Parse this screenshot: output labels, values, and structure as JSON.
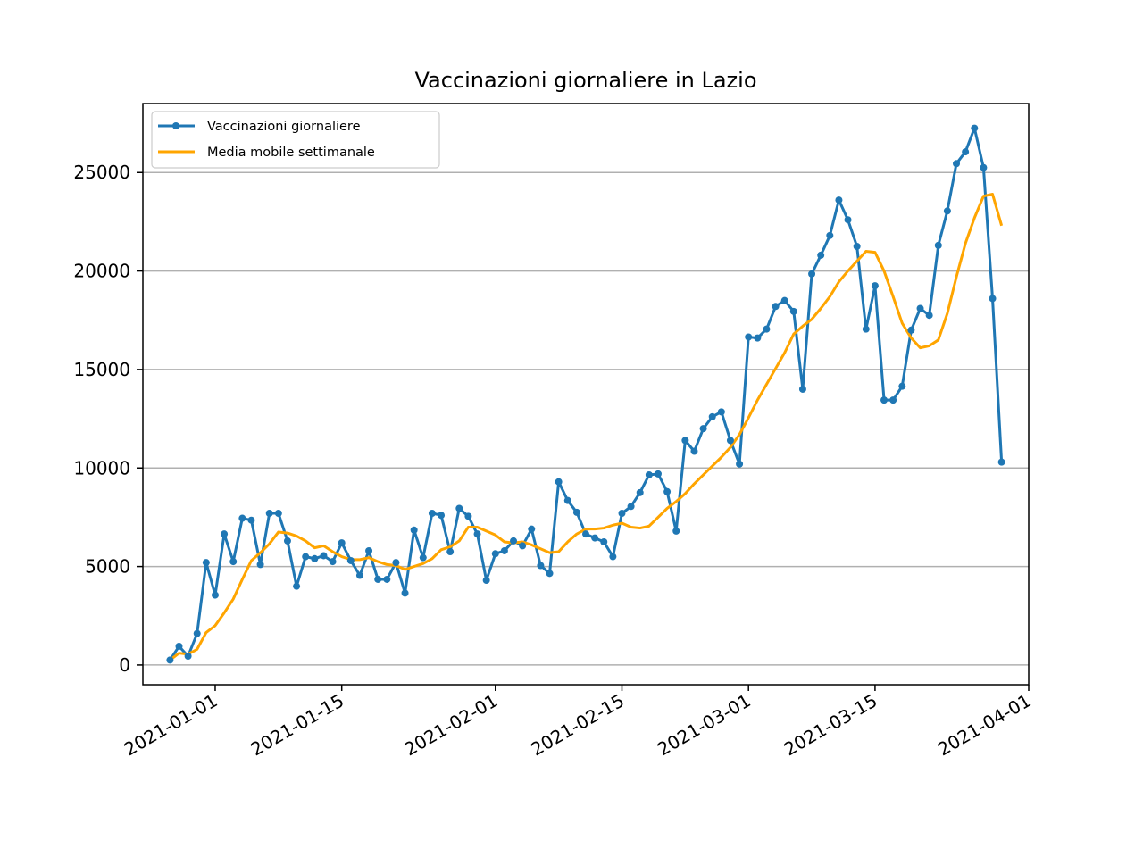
{
  "chart_data": {
    "type": "line",
    "title": "Vaccinazioni giornaliere in Lazio",
    "xlabel": "",
    "ylabel": "",
    "x_start": "2020-12-27",
    "x_range": [
      "2020-12-24",
      "2021-04-01"
    ],
    "ylim": [
      -1000,
      28500
    ],
    "y_ticks": [
      0,
      5000,
      10000,
      15000,
      20000,
      25000
    ],
    "x_tick_labels": [
      "2021-01-01",
      "2021-01-15",
      "2021-02-01",
      "2021-02-15",
      "2021-03-01",
      "2021-03-15",
      "2021-04-01"
    ],
    "grid": "y",
    "legend_position": "top-left",
    "colors": {
      "daily": "#1f77b4",
      "moving_avg": "#ffa500"
    },
    "series": [
      {
        "name": "Vaccinazioni giornaliere",
        "marker": "dot",
        "values": [
          250,
          950,
          450,
          1600,
          5200,
          3550,
          6650,
          5250,
          7450,
          7350,
          5100,
          7700,
          7700,
          6300,
          4000,
          5500,
          5400,
          5550,
          5250,
          6200,
          5300,
          4550,
          5800,
          4350,
          4350,
          5200,
          3650,
          6850,
          5450,
          7700,
          7600,
          5750,
          7950,
          7550,
          6650,
          4300,
          5650,
          5800,
          6300,
          6050,
          6900,
          5050,
          4650,
          9300,
          8350,
          7750,
          6650,
          6450,
          6250,
          5500,
          7700,
          8050,
          8750,
          9650,
          9700,
          8800,
          6800,
          11400,
          10850,
          12000,
          12600,
          12850,
          11400,
          10200,
          16650,
          16600,
          17050,
          18200,
          18500,
          17950,
          14000,
          19850,
          20800,
          21800,
          23600,
          22600,
          21250,
          17050,
          19250,
          13450,
          13450,
          14150,
          17000,
          18100,
          17750,
          21300,
          23050,
          25450,
          26050,
          27250,
          25250,
          18600,
          10300
        ]
      },
      {
        "name": "Media mobile settimanale",
        "values": [
          250,
          600,
          550,
          800,
          1650,
          2000,
          2650,
          3350,
          4350,
          5300,
          5700,
          6150,
          6750,
          6700,
          6550,
          6300,
          5950,
          6050,
          5750,
          5500,
          5350,
          5350,
          5450,
          5250,
          5100,
          5050,
          4850,
          5000,
          5150,
          5400,
          5850,
          6000,
          6300,
          7000,
          7000,
          6800,
          6600,
          6250,
          6200,
          6250,
          6100,
          5900,
          5700,
          5750,
          6250,
          6650,
          6900,
          6900,
          6950,
          7100,
          7200,
          7000,
          6950,
          7050,
          7500,
          7950,
          8300,
          8700,
          9200,
          9650,
          10100,
          10550,
          11050,
          11700,
          12550,
          13450,
          14250,
          15050,
          15850,
          16800,
          17200,
          17550,
          18100,
          18700,
          19450,
          20000,
          20500,
          21000,
          20950,
          20000,
          18700,
          17350,
          16600,
          16100,
          16200,
          16500,
          17850,
          19700,
          21400,
          22700,
          23800,
          23900,
          22300
        ]
      }
    ]
  }
}
